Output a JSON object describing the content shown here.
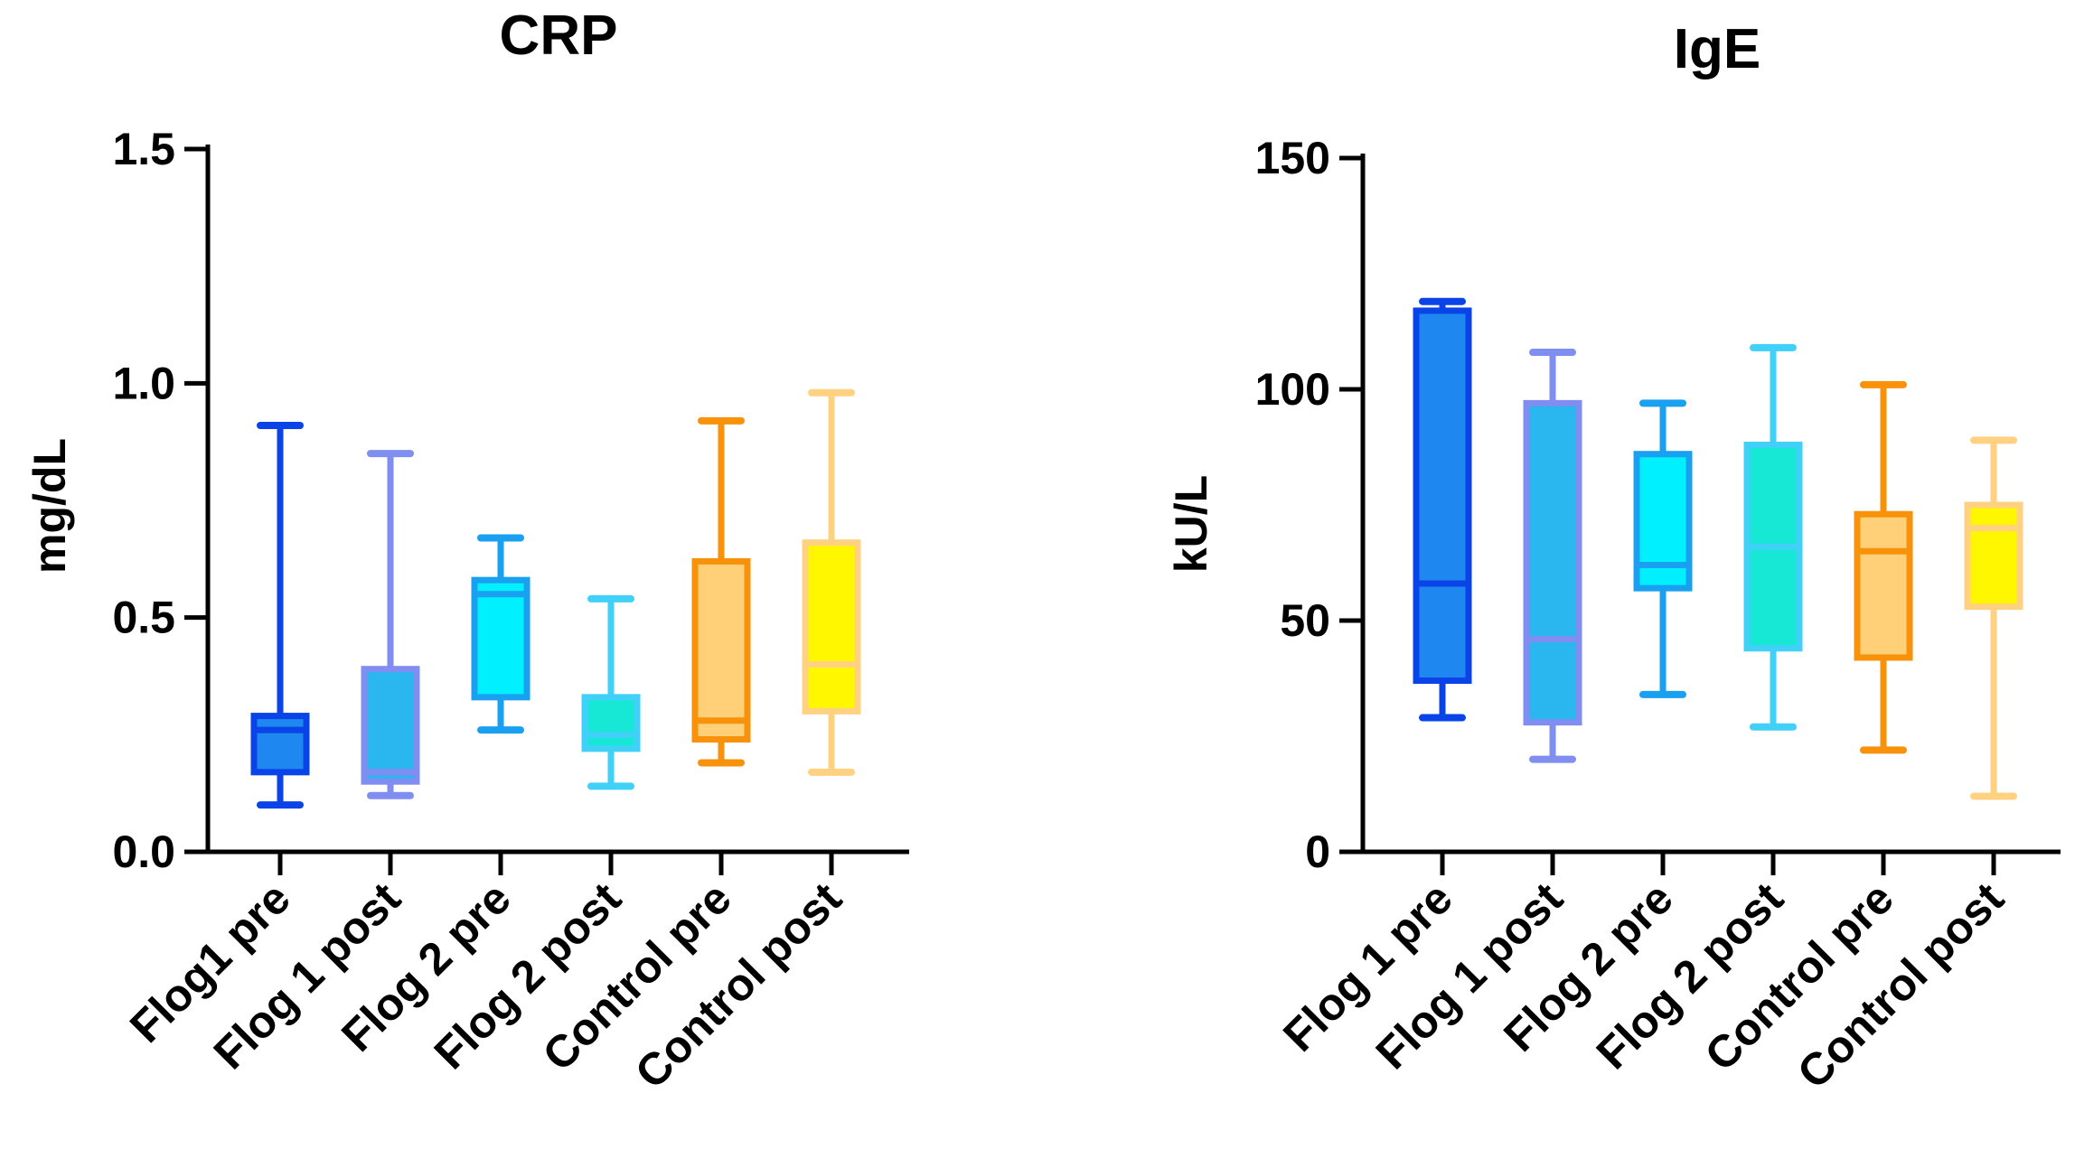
{
  "chart_data": [
    {
      "type": "box",
      "title": "CRP",
      "ylabel": "mg/dL",
      "xlabel": "",
      "ylim": [
        0,
        1.5
      ],
      "yticks": [
        0.0,
        0.5,
        1.0,
        1.5
      ],
      "ytick_labels": [
        "0.0",
        "0.5",
        "1.0",
        "1.5"
      ],
      "grid": false,
      "categories": [
        "Flog1 pre",
        "Flog 1 post",
        "Flog 2 pre",
        "Flog 2 post",
        "Control pre",
        "Control post"
      ],
      "boxes": [
        {
          "min": 0.1,
          "q1": 0.17,
          "median": 0.26,
          "q3": 0.29,
          "max": 0.91,
          "edge": "#0a43e8",
          "fill": "#1e88f0"
        },
        {
          "min": 0.12,
          "q1": 0.15,
          "median": 0.17,
          "q3": 0.39,
          "max": 0.85,
          "edge": "#7f8ef0",
          "fill": "#2ab6ee"
        },
        {
          "min": 0.26,
          "q1": 0.33,
          "median": 0.55,
          "q3": 0.58,
          "max": 0.67,
          "edge": "#1aa0f0",
          "fill": "#00f0ff"
        },
        {
          "min": 0.14,
          "q1": 0.22,
          "median": 0.25,
          "q3": 0.33,
          "max": 0.54,
          "edge": "#40d0f8",
          "fill": "#17e8d6"
        },
        {
          "min": 0.19,
          "q1": 0.24,
          "median": 0.28,
          "q3": 0.62,
          "max": 0.92,
          "edge": "#f7920a",
          "fill": "#ffd078"
        },
        {
          "min": 0.17,
          "q1": 0.3,
          "median": 0.4,
          "q3": 0.66,
          "max": 0.98,
          "edge": "#ffd180",
          "fill": "#fff700"
        }
      ]
    },
    {
      "type": "box",
      "title": "IgE",
      "ylabel": "kU/L",
      "xlabel": "",
      "ylim": [
        0,
        150
      ],
      "yticks": [
        0,
        50,
        100,
        150
      ],
      "ytick_labels": [
        "0",
        "50",
        "100",
        "150"
      ],
      "grid": false,
      "categories": [
        "Flog 1 pre",
        "Flog 1 post",
        "Flog 2 pre",
        "Flog 2 post",
        "Control pre",
        "Control post"
      ],
      "boxes": [
        {
          "min": 29,
          "q1": 37,
          "median": 58,
          "q3": 117,
          "max": 119,
          "edge": "#0a43e8",
          "fill": "#1e88f0"
        },
        {
          "min": 20,
          "q1": 28,
          "median": 46,
          "q3": 97,
          "max": 108,
          "edge": "#7f8ef0",
          "fill": "#2ab6ee"
        },
        {
          "min": 34,
          "q1": 57,
          "median": 62,
          "q3": 86,
          "max": 97,
          "edge": "#1aa0f0",
          "fill": "#00f0ff"
        },
        {
          "min": 27,
          "q1": 44,
          "median": 66,
          "q3": 88,
          "max": 109,
          "edge": "#40d0f8",
          "fill": "#17e8d6"
        },
        {
          "min": 22,
          "q1": 42,
          "median": 65,
          "q3": 73,
          "max": 101,
          "edge": "#f7920a",
          "fill": "#ffd078"
        },
        {
          "min": 12,
          "q1": 53,
          "median": 70,
          "q3": 75,
          "max": 89,
          "edge": "#ffd180",
          "fill": "#fff700"
        }
      ]
    }
  ]
}
